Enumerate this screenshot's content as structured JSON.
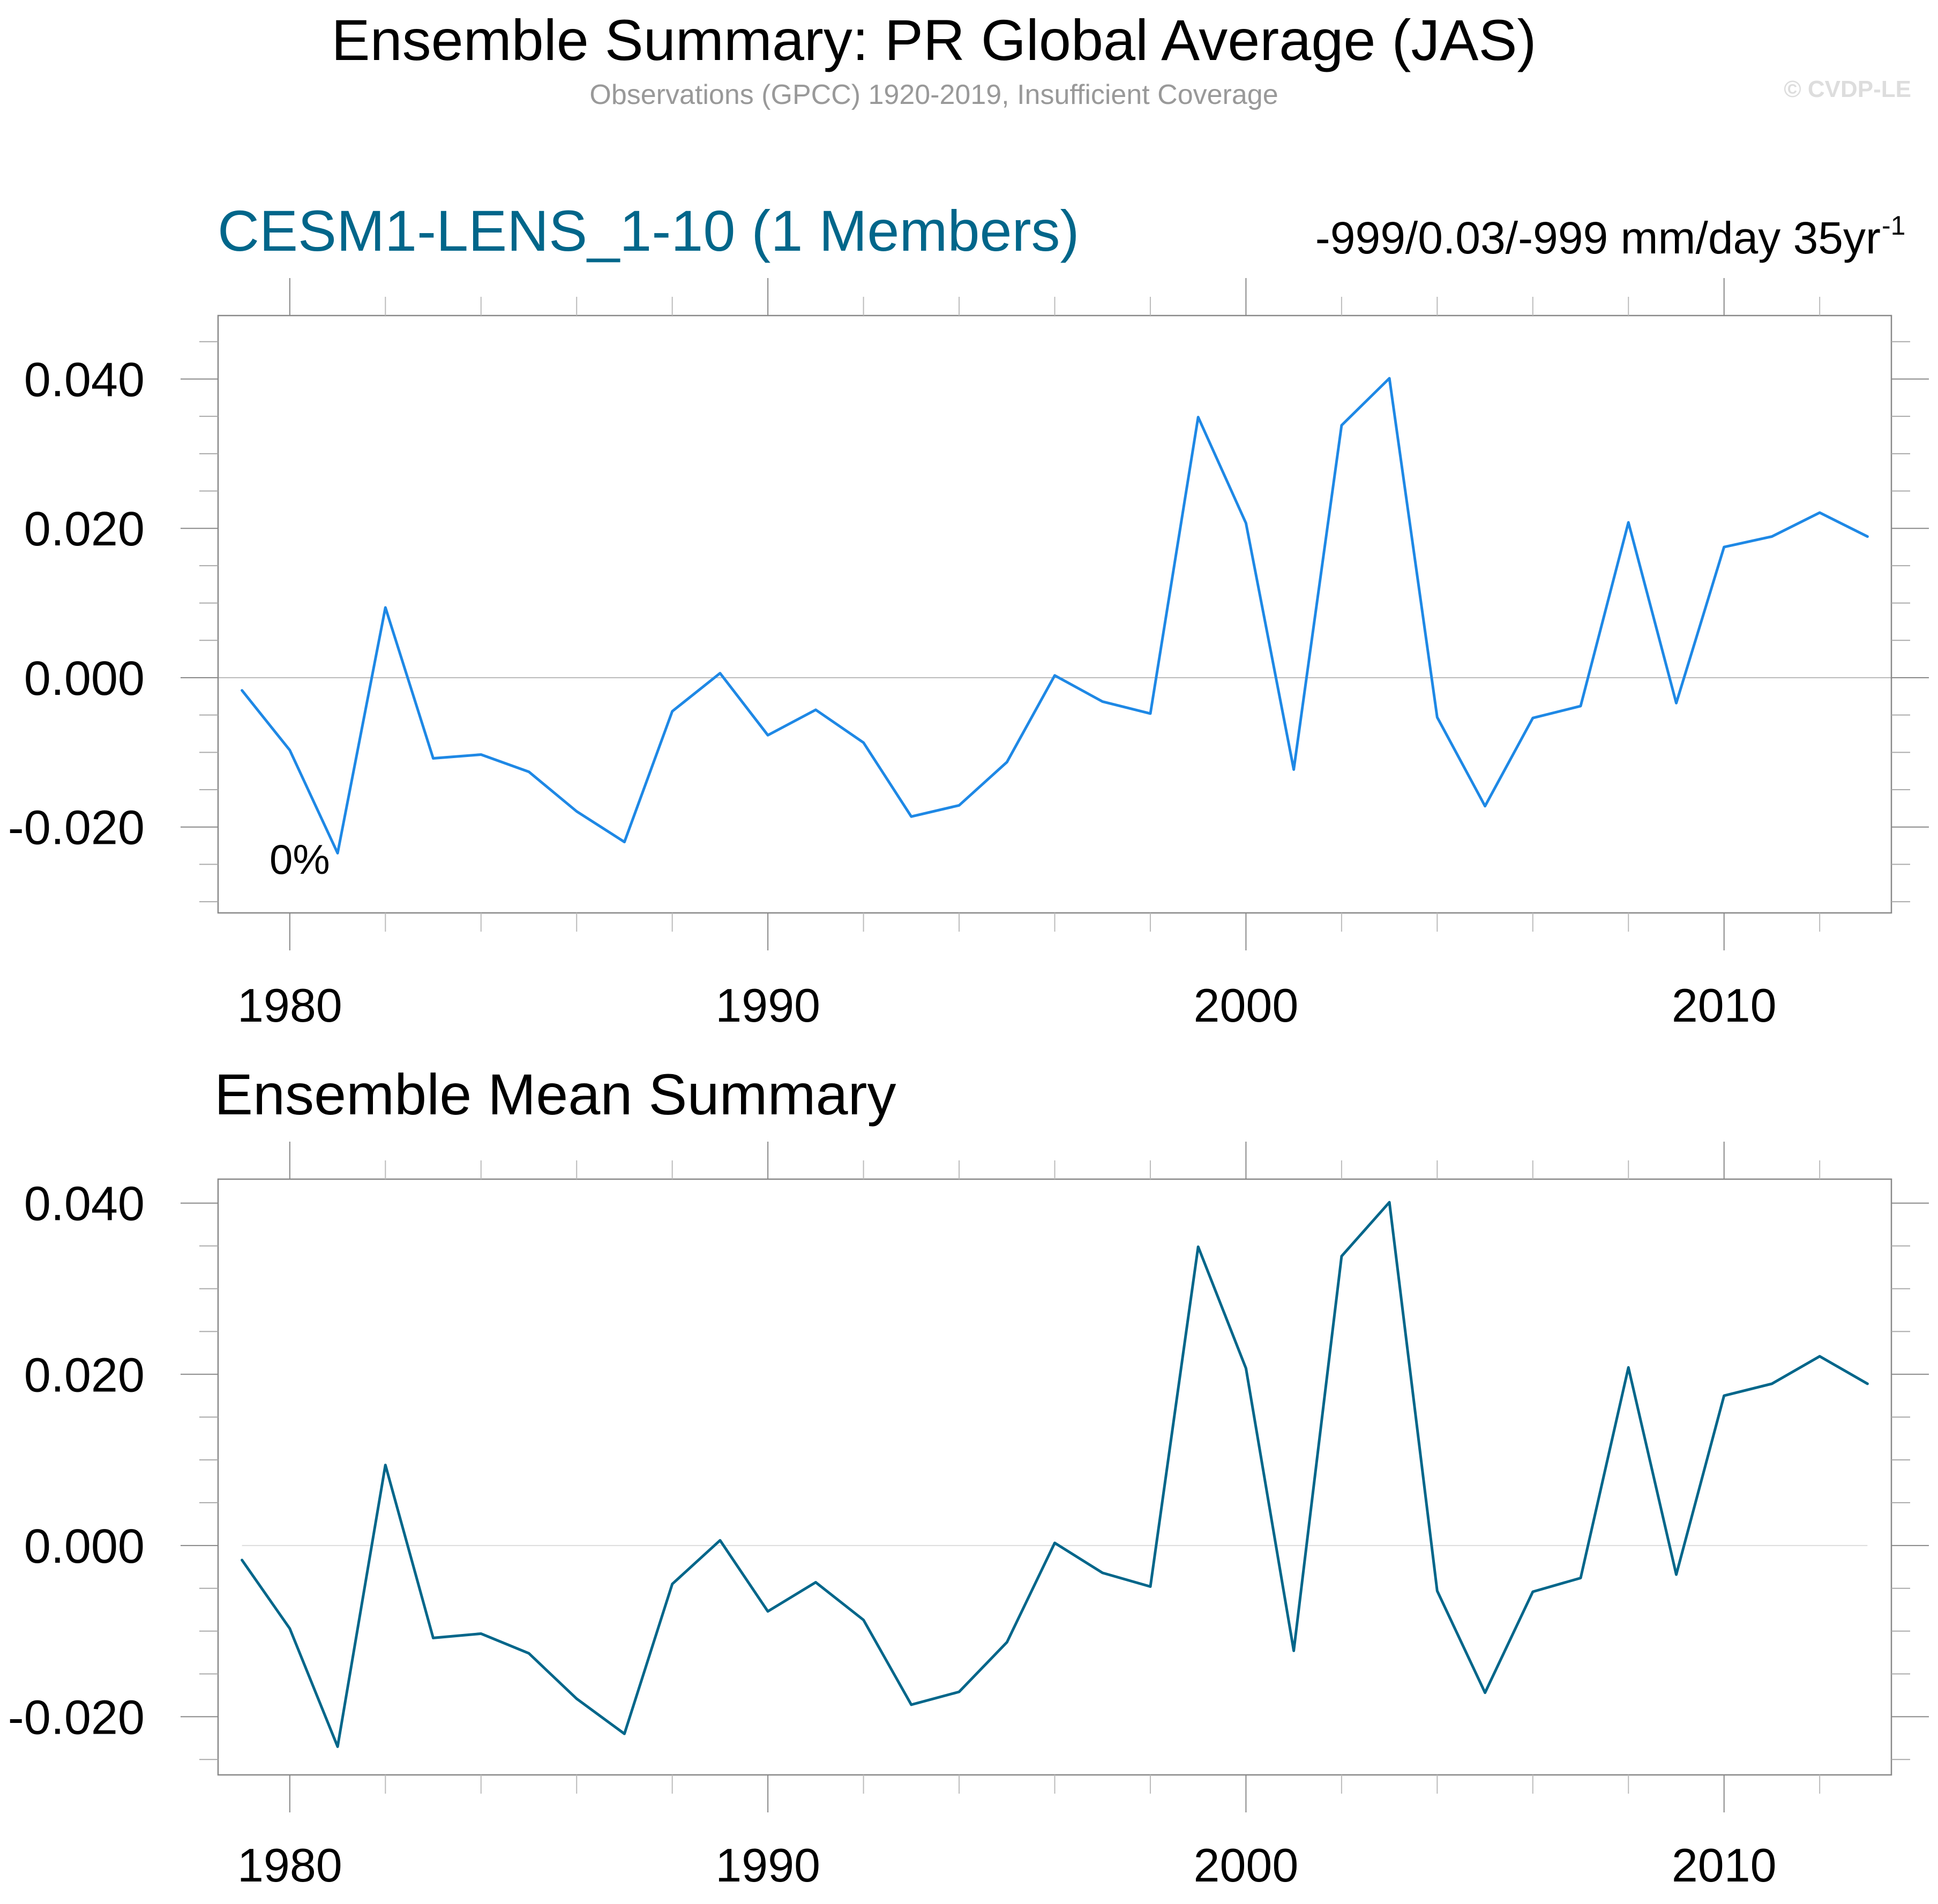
{
  "title": "Ensemble Summary: PR Global Average (JAS)",
  "subtitle": "Observations (GPCC) 1920-2019, Insufficient Coverage",
  "watermark": "© CVDP-LE",
  "colors": {
    "title": "#000000",
    "subtitle": "#999999",
    "watermark": "#dddddd",
    "panel1_title": "#00668A",
    "panel1_line": "#1E88E5",
    "panel2_line": "#00668A",
    "axis": "#888888",
    "zero_line_panel1": "#bbbbbb",
    "zero_line_panel2": "#dddddd"
  },
  "chart_data": [
    {
      "type": "line",
      "id": "panel1",
      "title": "CESM1-LENS_1-10 (1 Members)",
      "right_annotation": {
        "text": "-999/0.03/-999 mm/day 35yr",
        "superscript": "-1"
      },
      "inset_label": "0%",
      "xlabel": "",
      "ylabel": "",
      "xlim": [
        1978.5,
        2013.5
      ],
      "ylim": [
        -0.0315,
        0.0485
      ],
      "x_major_ticks": [
        1980,
        1990,
        2000,
        2010
      ],
      "x_tick_labels": [
        "1980",
        "1990",
        "2000",
        "2010"
      ],
      "x_minor_step": 2,
      "y_major_ticks": [
        -0.02,
        0.0,
        0.02,
        0.04
      ],
      "y_tick_labels": [
        "-0.020",
        "0.000",
        "0.020",
        "0.040"
      ],
      "y_minor_step": 0.005,
      "grid": false,
      "reference_line": 0.0,
      "series": [
        {
          "name": "CESM1-LENS_1-10",
          "x": [
            1979,
            1980,
            1981,
            1982,
            1983,
            1984,
            1985,
            1986,
            1987,
            1988,
            1989,
            1990,
            1991,
            1992,
            1993,
            1994,
            1995,
            1996,
            1997,
            1998,
            1999,
            2000,
            2001,
            2002,
            2003,
            2004,
            2005,
            2006,
            2007,
            2008,
            2009,
            2010,
            2011,
            2012,
            2013
          ],
          "values": [
            -0.0017,
            -0.0097,
            -0.0235,
            0.0094,
            -0.0108,
            -0.0103,
            -0.0126,
            -0.0179,
            -0.022,
            -0.0045,
            0.0006,
            -0.0077,
            -0.0043,
            -0.0087,
            -0.0186,
            -0.0171,
            -0.0113,
            0.0003,
            -0.0032,
            -0.0048,
            0.0349,
            0.0207,
            -0.0123,
            0.0338,
            0.0401,
            -0.0053,
            -0.0172,
            -0.0054,
            -0.0038,
            0.0208,
            -0.0034,
            0.0175,
            0.0189,
            0.0221,
            0.0189
          ]
        }
      ]
    },
    {
      "type": "line",
      "id": "panel2",
      "title": "Ensemble Mean Summary",
      "xlabel": "",
      "ylabel": "",
      "xlim": [
        1978.5,
        2013.5
      ],
      "ylim": [
        -0.0268,
        0.0428
      ],
      "x_major_ticks": [
        1980,
        1990,
        2000,
        2010
      ],
      "x_tick_labels": [
        "1980",
        "1990",
        "2000",
        "2010"
      ],
      "x_minor_step": 2,
      "y_major_ticks": [
        -0.02,
        0.0,
        0.02,
        0.04
      ],
      "y_tick_labels": [
        "-0.020",
        "0.000",
        "0.020",
        "0.040"
      ],
      "y_minor_step": 0.005,
      "grid": false,
      "reference_line": 0.0,
      "series": [
        {
          "name": "Ensemble Mean",
          "x": [
            1979,
            1980,
            1981,
            1982,
            1983,
            1984,
            1985,
            1986,
            1987,
            1988,
            1989,
            1990,
            1991,
            1992,
            1993,
            1994,
            1995,
            1996,
            1997,
            1998,
            1999,
            2000,
            2001,
            2002,
            2003,
            2004,
            2005,
            2006,
            2007,
            2008,
            2009,
            2010,
            2011,
            2012,
            2013
          ],
          "values": [
            -0.0017,
            -0.0097,
            -0.0235,
            0.0094,
            -0.0108,
            -0.0103,
            -0.0126,
            -0.0179,
            -0.022,
            -0.0045,
            0.0006,
            -0.0077,
            -0.0043,
            -0.0087,
            -0.0186,
            -0.0171,
            -0.0113,
            0.0003,
            -0.0032,
            -0.0048,
            0.0349,
            0.0207,
            -0.0123,
            0.0338,
            0.0401,
            -0.0053,
            -0.0172,
            -0.0054,
            -0.0038,
            0.0208,
            -0.0034,
            0.0175,
            0.0189,
            0.0221,
            0.0189
          ]
        }
      ]
    }
  ]
}
